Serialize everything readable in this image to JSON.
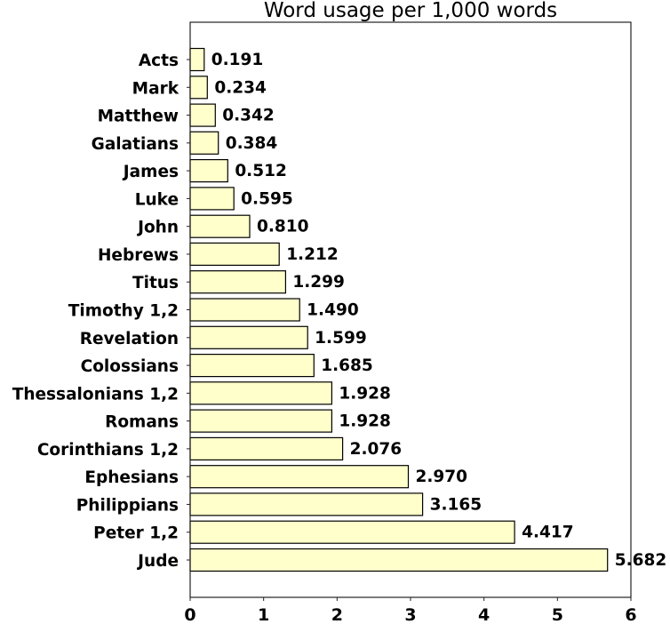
{
  "chart_data": {
    "type": "bar",
    "orientation": "horizontal",
    "title": "Word usage per 1,000 words",
    "xlabel": "",
    "ylabel": "",
    "xlim": [
      0,
      6
    ],
    "xticks": [
      "0",
      "1",
      "2",
      "3",
      "4",
      "5",
      "6"
    ],
    "grid": false,
    "legend": null,
    "bar_color": "#ffffcc",
    "bar_edge_color": "#000000",
    "categories": [
      "Acts",
      "Mark",
      "Matthew",
      "Galatians",
      "James",
      "Luke",
      "John",
      "Hebrews",
      "Titus",
      "Timothy 1,2",
      "Revelation",
      "Colossians",
      "Thessalonians 1,2",
      "Romans",
      "Corinthians 1,2",
      "Ephesians",
      "Philippians",
      "Peter 1,2",
      "Jude"
    ],
    "values": [
      0.191,
      0.234,
      0.342,
      0.384,
      0.512,
      0.595,
      0.81,
      1.212,
      1.299,
      1.49,
      1.599,
      1.685,
      1.928,
      1.928,
      2.076,
      2.97,
      3.165,
      4.417,
      5.682
    ],
    "value_labels": [
      "0.191",
      "0.234",
      "0.342",
      "0.384",
      "0.512",
      "0.595",
      "0.810",
      "1.212",
      "1.299",
      "1.490",
      "1.599",
      "1.685",
      "1.928",
      "1.928",
      "2.076",
      "2.970",
      "3.165",
      "4.417",
      "5.682"
    ]
  }
}
